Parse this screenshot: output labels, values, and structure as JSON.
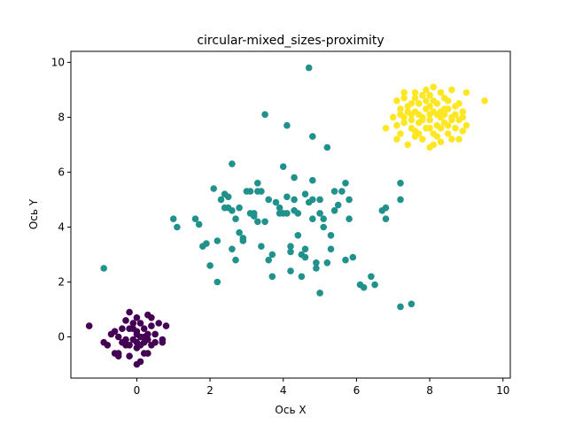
{
  "chart_data": {
    "type": "scatter",
    "title": "circular-mixed_sizes-proximity",
    "xlabel": "Ось X",
    "ylabel": "Ось Y",
    "xlim": [
      -1.8,
      10.2
    ],
    "ylim": [
      -1.5,
      10.4
    ],
    "xticks": [
      0,
      2,
      4,
      6,
      8,
      10
    ],
    "yticks": [
      0,
      2,
      4,
      6,
      8,
      10
    ],
    "xtick_labels": [
      "0",
      "2",
      "4",
      "6",
      "8",
      "10"
    ],
    "ytick_labels": [
      "0",
      "2",
      "4",
      "6",
      "8",
      "10"
    ],
    "grid": false,
    "legend": "none",
    "series": [
      {
        "color": "#440154",
        "points": [
          [
            -1.3,
            0.4
          ],
          [
            -0.9,
            -0.2
          ],
          [
            -0.8,
            -0.3
          ],
          [
            -0.7,
            0.1
          ],
          [
            -0.6,
            0.2
          ],
          [
            -0.6,
            -0.6
          ],
          [
            -0.5,
            -0.7
          ],
          [
            -0.5,
            0.0
          ],
          [
            -0.4,
            -0.2
          ],
          [
            -0.4,
            0.3
          ],
          [
            -0.3,
            0.6
          ],
          [
            -0.3,
            -0.1
          ],
          [
            -0.2,
            0.9
          ],
          [
            -0.2,
            -0.3
          ],
          [
            -0.2,
            -0.7
          ],
          [
            -0.1,
            0.5
          ],
          [
            -0.1,
            -0.1
          ],
          [
            0.0,
            0.2
          ],
          [
            0.0,
            -0.4
          ],
          [
            0.0,
            0.7
          ],
          [
            0.0,
            -1.0
          ],
          [
            0.1,
            0.0
          ],
          [
            0.1,
            -0.9
          ],
          [
            0.1,
            0.5
          ],
          [
            0.2,
            -0.2
          ],
          [
            0.2,
            0.3
          ],
          [
            0.2,
            -0.6
          ],
          [
            0.3,
            0.8
          ],
          [
            0.3,
            -0.1
          ],
          [
            0.3,
            0.1
          ],
          [
            0.4,
            0.7
          ],
          [
            0.4,
            -0.3
          ],
          [
            0.4,
            0.4
          ],
          [
            0.5,
            0.1
          ],
          [
            0.5,
            -0.2
          ],
          [
            0.6,
            0.5
          ],
          [
            0.7,
            -0.1
          ],
          [
            0.7,
            -0.2
          ],
          [
            0.8,
            0.4
          ],
          [
            -0.3,
            -0.3
          ],
          [
            -0.1,
            0.3
          ],
          [
            0.0,
            -0.2
          ],
          [
            0.2,
            0.0
          ],
          [
            -0.5,
            -0.6
          ],
          [
            0.1,
            -0.3
          ],
          [
            0.3,
            -0.6
          ],
          [
            -0.2,
            0.3
          ],
          [
            0.0,
            0.1
          ]
        ]
      },
      {
        "color": "#21918c",
        "points": [
          [
            -0.9,
            2.5
          ],
          [
            1.0,
            4.3
          ],
          [
            1.1,
            4.0
          ],
          [
            1.6,
            4.3
          ],
          [
            1.7,
            4.1
          ],
          [
            1.8,
            3.3
          ],
          [
            1.9,
            3.4
          ],
          [
            2.0,
            2.6
          ],
          [
            2.1,
            5.4
          ],
          [
            2.2,
            2.0
          ],
          [
            2.2,
            3.5
          ],
          [
            2.3,
            5.0
          ],
          [
            2.4,
            4.7
          ],
          [
            2.5,
            5.1
          ],
          [
            2.5,
            4.7
          ],
          [
            2.6,
            3.2
          ],
          [
            2.6,
            4.6
          ],
          [
            2.7,
            2.8
          ],
          [
            2.7,
            4.3
          ],
          [
            2.8,
            4.7
          ],
          [
            2.8,
            3.8
          ],
          [
            2.9,
            3.6
          ],
          [
            2.9,
            3.5
          ],
          [
            3.0,
            5.3
          ],
          [
            3.1,
            5.3
          ],
          [
            3.2,
            4.5
          ],
          [
            3.3,
            4.2
          ],
          [
            3.3,
            5.3
          ],
          [
            3.3,
            5.6
          ],
          [
            3.4,
            5.3
          ],
          [
            3.5,
            4.2
          ],
          [
            3.6,
            2.8
          ],
          [
            3.6,
            5.0
          ],
          [
            3.7,
            2.2
          ],
          [
            3.7,
            3.0
          ],
          [
            3.8,
            4.9
          ],
          [
            3.9,
            4.7
          ],
          [
            3.9,
            4.5
          ],
          [
            4.0,
            4.5
          ],
          [
            4.1,
            5.1
          ],
          [
            4.1,
            4.5
          ],
          [
            4.2,
            3.3
          ],
          [
            4.2,
            3.1
          ],
          [
            4.3,
            5.0
          ],
          [
            4.3,
            4.6
          ],
          [
            4.4,
            4.5
          ],
          [
            4.4,
            3.7
          ],
          [
            4.5,
            2.2
          ],
          [
            4.5,
            3.0
          ],
          [
            4.6,
            2.9
          ],
          [
            4.6,
            3.2
          ],
          [
            4.7,
            4.9
          ],
          [
            4.8,
            5.0
          ],
          [
            4.8,
            4.3
          ],
          [
            4.8,
            5.7
          ],
          [
            4.9,
            2.7
          ],
          [
            5.0,
            5.0
          ],
          [
            5.0,
            1.6
          ],
          [
            5.1,
            4.3
          ],
          [
            5.2,
            2.7
          ],
          [
            5.3,
            3.2
          ],
          [
            5.3,
            3.7
          ],
          [
            5.4,
            4.6
          ],
          [
            5.4,
            5.3
          ],
          [
            5.5,
            4.8
          ],
          [
            5.6,
            5.3
          ],
          [
            5.7,
            2.8
          ],
          [
            5.8,
            5.0
          ],
          [
            5.8,
            4.3
          ],
          [
            5.9,
            2.9
          ],
          [
            6.1,
            1.9
          ],
          [
            6.2,
            1.8
          ],
          [
            6.4,
            2.2
          ],
          [
            6.5,
            1.9
          ],
          [
            6.7,
            4.6
          ],
          [
            6.8,
            4.3
          ],
          [
            6.8,
            4.7
          ],
          [
            7.2,
            5.6
          ],
          [
            7.2,
            5.0
          ],
          [
            7.2,
            1.1
          ],
          [
            7.5,
            1.2
          ],
          [
            5.0,
            4.5
          ],
          [
            4.3,
            5.8
          ],
          [
            3.5,
            8.1
          ],
          [
            4.1,
            7.7
          ],
          [
            4.7,
            9.8
          ],
          [
            4.8,
            7.3
          ],
          [
            5.2,
            6.9
          ],
          [
            4.0,
            6.2
          ],
          [
            2.6,
            6.3
          ],
          [
            4.2,
            2.4
          ],
          [
            3.1,
            4.5
          ],
          [
            2.4,
            5.2
          ],
          [
            3.4,
            3.3
          ],
          [
            4.6,
            5.2
          ],
          [
            5.7,
            5.6
          ],
          [
            3.2,
            4.4
          ],
          [
            5.1,
            4.0
          ],
          [
            4.9,
            2.5
          ]
        ]
      },
      {
        "color": "#fde725",
        "points": [
          [
            6.8,
            7.6
          ],
          [
            7.0,
            8.0
          ],
          [
            7.1,
            7.7
          ],
          [
            7.1,
            8.6
          ],
          [
            7.2,
            8.3
          ],
          [
            7.2,
            7.4
          ],
          [
            7.3,
            8.7
          ],
          [
            7.3,
            7.8
          ],
          [
            7.4,
            8.2
          ],
          [
            7.4,
            7.0
          ],
          [
            7.5,
            7.6
          ],
          [
            7.5,
            8.1
          ],
          [
            7.6,
            8.9
          ],
          [
            7.6,
            7.3
          ],
          [
            7.7,
            7.8
          ],
          [
            7.7,
            8.5
          ],
          [
            7.8,
            7.2
          ],
          [
            7.8,
            8.0
          ],
          [
            7.9,
            7.6
          ],
          [
            7.9,
            8.3
          ],
          [
            8.0,
            6.9
          ],
          [
            8.0,
            8.8
          ],
          [
            8.0,
            7.9
          ],
          [
            8.1,
            8.2
          ],
          [
            8.1,
            7.4
          ],
          [
            8.1,
            9.1
          ],
          [
            8.2,
            7.7
          ],
          [
            8.2,
            8.5
          ],
          [
            8.3,
            8.0
          ],
          [
            8.3,
            7.1
          ],
          [
            8.4,
            8.7
          ],
          [
            8.4,
            7.8
          ],
          [
            8.5,
            8.3
          ],
          [
            8.5,
            7.4
          ],
          [
            8.6,
            8.0
          ],
          [
            8.6,
            9.0
          ],
          [
            8.7,
            7.6
          ],
          [
            8.7,
            8.4
          ],
          [
            8.8,
            7.9
          ],
          [
            8.8,
            7.2
          ],
          [
            8.9,
            8.2
          ],
          [
            9.0,
            7.7
          ],
          [
            9.0,
            8.9
          ],
          [
            9.5,
            8.6
          ],
          [
            7.5,
            7.9
          ],
          [
            7.9,
            8.6
          ],
          [
            8.3,
            8.9
          ],
          [
            8.6,
            7.2
          ],
          [
            7.7,
            8.1
          ],
          [
            8.2,
            8.1
          ],
          [
            7.3,
            8.0
          ],
          [
            7.6,
            7.5
          ],
          [
            8.0,
            8.4
          ],
          [
            8.4,
            8.1
          ],
          [
            8.9,
            8.0
          ],
          [
            7.8,
            8.8
          ],
          [
            8.1,
            7.0
          ],
          [
            8.5,
            8.6
          ],
          [
            7.4,
            8.4
          ],
          [
            8.7,
            8.1
          ],
          [
            7.2,
            8.1
          ],
          [
            8.0,
            7.6
          ],
          [
            7.6,
            8.2
          ],
          [
            8.3,
            7.6
          ],
          [
            8.8,
            8.5
          ],
          [
            7.1,
            7.2
          ],
          [
            7.9,
            9.0
          ],
          [
            8.6,
            7.9
          ],
          [
            8.2,
            7.3
          ],
          [
            7.5,
            8.5
          ],
          [
            8.4,
            8.3
          ],
          [
            7.7,
            7.4
          ],
          [
            8.1,
            8.6
          ],
          [
            7.3,
            8.9
          ],
          [
            8.9,
            7.5
          ],
          [
            7.8,
            7.9
          ],
          [
            8.5,
            7.7
          ],
          [
            8.0,
            8.1
          ],
          [
            7.6,
            8.7
          ],
          [
            8.3,
            8.2
          ]
        ]
      }
    ]
  }
}
